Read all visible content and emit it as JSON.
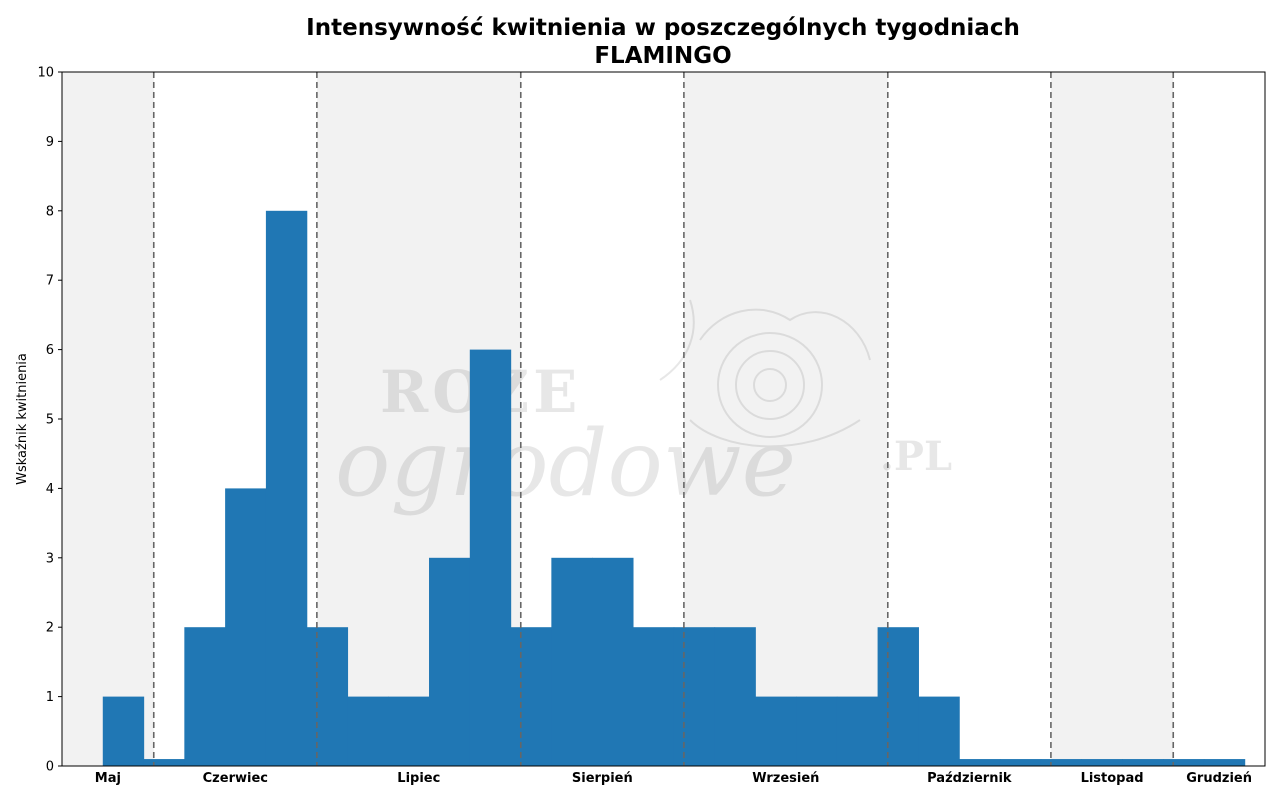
{
  "chart_data": {
    "type": "bar",
    "title": "Intensywność kwitnienia w poszczególnych tygodniach",
    "subtitle": "FLAMINGO",
    "ylabel": "Wskaźnik kwitnienia",
    "xlabel": "",
    "ylim": [
      0,
      10
    ],
    "yticks": [
      "0",
      "1",
      "2",
      "3",
      "4",
      "5",
      "6",
      "7",
      "8",
      "9",
      "10"
    ],
    "grid": false,
    "values": [
      0,
      1,
      0.1,
      2,
      4,
      8,
      2,
      1,
      1,
      3,
      6,
      2,
      3,
      3,
      2,
      2,
      2,
      1,
      1,
      1,
      2,
      1,
      0.1,
      0.1,
      0.1,
      0.1,
      0.1,
      0.1,
      0.1
    ],
    "bar_color": "#2077b4",
    "months": [
      {
        "label": "Maj",
        "start_week": 0,
        "end_week": 2.25,
        "shaded": true
      },
      {
        "label": "Czerwiec",
        "start_week": 2.25,
        "end_week": 6.25,
        "shaded": false
      },
      {
        "label": "Lipiec",
        "start_week": 6.25,
        "end_week": 11.25,
        "shaded": true
      },
      {
        "label": "Sierpień",
        "start_week": 11.25,
        "end_week": 15.25,
        "shaded": false
      },
      {
        "label": "Wrzesień",
        "start_week": 15.25,
        "end_week": 20.25,
        "shaded": true
      },
      {
        "label": "Październik",
        "start_week": 20.25,
        "end_week": 24.25,
        "shaded": false
      },
      {
        "label": "Listopad",
        "start_week": 24.25,
        "end_week": 27.25,
        "shaded": true
      },
      {
        "label": "Grudzień",
        "start_week": 27.25,
        "end_week": 29.5,
        "shaded": false
      }
    ],
    "x_range_weeks": [
      0,
      29.5
    ],
    "month_band_color": "#f2f2f2",
    "divider_color": "#666666"
  },
  "watermark": {
    "line1": "ROZE",
    "line2": "ogrodowe",
    "line3": ".PL"
  }
}
